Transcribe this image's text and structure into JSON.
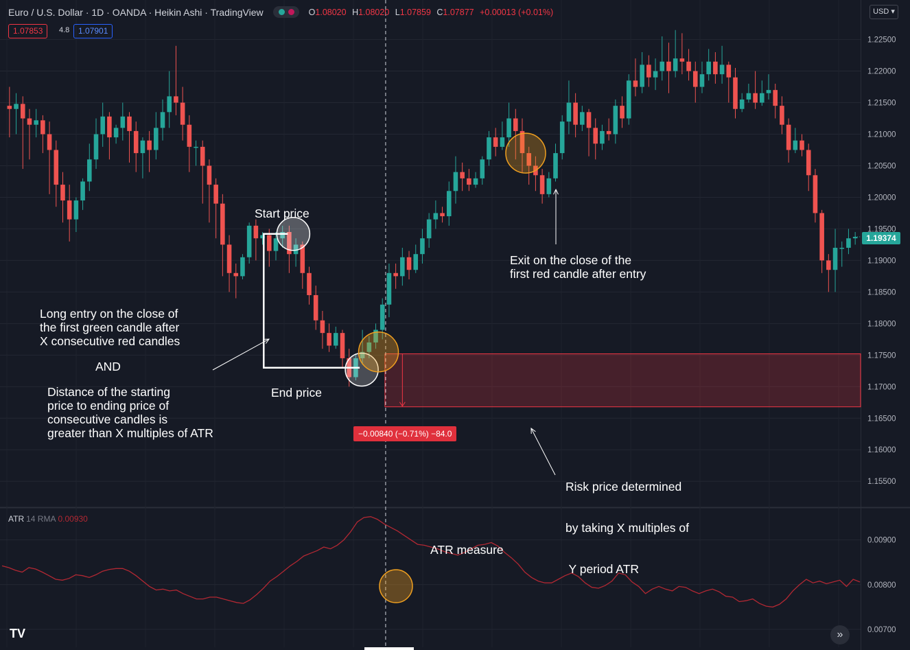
{
  "header": {
    "symbol_line": "Euro / U.S. Dollar · 1D · OANDA · Heikin Ashi · TradingView",
    "ohlc": [
      {
        "k": "O",
        "v": "1.08020"
      },
      {
        "k": "H",
        "v": "1.08020"
      },
      {
        "k": "L",
        "v": "1.07859"
      },
      {
        "k": "C",
        "v": "1.07877"
      },
      {
        "k": "",
        "v": "+0.00013 (+0.01%)"
      }
    ],
    "sell_price": "1.07853",
    "spread": "4.8",
    "buy_price": "1.07901",
    "currency_button": "USD"
  },
  "colors": {
    "up": "#26a69a",
    "down": "#ef5350",
    "background": "#161a25",
    "atr_line": "#b22833",
    "highlight_orange": "#f0a020",
    "highlight_white": "#ffffff"
  },
  "annotations": {
    "start_price": "Start price",
    "end_price": "End price",
    "entry_lines": [
      "Long entry on the close of",
      "the first green candle after",
      "X consecutive red candles"
    ],
    "and": "AND",
    "distance_lines": [
      "Distance of the starting",
      "price to ending price of",
      "consecutive candles is",
      "greater than X multiples of ATR"
    ],
    "exit_lines": [
      "Exit on the close of the",
      "first red candle after entry"
    ],
    "risk_lines": [
      "Risk price determined",
      "by taking X multiples of",
      " Y period ATR"
    ],
    "atr_measure": "ATR measure"
  },
  "measure_label": "−0.00840 (−0.71%) −84.0",
  "last_price": "1.19374",
  "atr_indicator": {
    "name": "ATR",
    "params": "14 RMA",
    "value": "0.00930"
  },
  "chart_data": [
    {
      "type": "candlestick",
      "title": "Euro / U.S. Dollar · 1D · OANDA · Heikin Ashi",
      "ylim": [
        1.151,
        1.228
      ],
      "y_ticks": [
        "1.22500",
        "1.22000",
        "1.21500",
        "1.21000",
        "1.20500",
        "1.20000",
        "1.19500",
        "1.19000",
        "1.18500",
        "1.18000",
        "1.17500",
        "1.17000",
        "1.16500",
        "1.16000",
        "1.15500"
      ],
      "candles": [
        {
          "o": 1.2145,
          "c": 1.214,
          "h": 1.2175,
          "l": 1.2095
        },
        {
          "o": 1.214,
          "c": 1.2148,
          "h": 1.2165,
          "l": 1.21
        },
        {
          "o": 1.2148,
          "c": 1.2125,
          "h": 1.216,
          "l": 1.2045
        },
        {
          "o": 1.2125,
          "c": 1.2115,
          "h": 1.214,
          "l": 1.206
        },
        {
          "o": 1.2115,
          "c": 1.2122,
          "h": 1.214,
          "l": 1.2095
        },
        {
          "o": 1.2122,
          "c": 1.21,
          "h": 1.213,
          "l": 1.207
        },
        {
          "o": 1.21,
          "c": 1.2075,
          "h": 1.212,
          "l": 1.2005
        },
        {
          "o": 1.2075,
          "c": 1.202,
          "h": 1.209,
          "l": 1.1985
        },
        {
          "o": 1.202,
          "c": 1.1995,
          "h": 1.204,
          "l": 1.196
        },
        {
          "o": 1.1995,
          "c": 1.1965,
          "h": 1.202,
          "l": 1.193
        },
        {
          "o": 1.1965,
          "c": 1.1995,
          "h": 1.2,
          "l": 1.1945
        },
        {
          "o": 1.1995,
          "c": 1.2025,
          "h": 1.203,
          "l": 1.198
        },
        {
          "o": 1.2025,
          "c": 1.206,
          "h": 1.2085,
          "l": 1.201
        },
        {
          "o": 1.206,
          "c": 1.21,
          "h": 1.2125,
          "l": 1.2045
        },
        {
          "o": 1.21,
          "c": 1.2128,
          "h": 1.215,
          "l": 1.208
        },
        {
          "o": 1.2128,
          "c": 1.2095,
          "h": 1.2135,
          "l": 1.206
        },
        {
          "o": 1.2095,
          "c": 1.211,
          "h": 1.2115,
          "l": 1.2085
        },
        {
          "o": 1.211,
          "c": 1.2128,
          "h": 1.215,
          "l": 1.209
        },
        {
          "o": 1.2128,
          "c": 1.2105,
          "h": 1.2135,
          "l": 1.2055
        },
        {
          "o": 1.2105,
          "c": 1.207,
          "h": 1.212,
          "l": 1.204
        },
        {
          "o": 1.207,
          "c": 1.209,
          "h": 1.2095,
          "l": 1.203
        },
        {
          "o": 1.209,
          "c": 1.2075,
          "h": 1.2105,
          "l": 1.204
        },
        {
          "o": 1.2075,
          "c": 1.211,
          "h": 1.2135,
          "l": 1.206
        },
        {
          "o": 1.211,
          "c": 1.2135,
          "h": 1.2155,
          "l": 1.209
        },
        {
          "o": 1.2135,
          "c": 1.216,
          "h": 1.22,
          "l": 1.211
        },
        {
          "o": 1.216,
          "c": 1.215,
          "h": 1.224,
          "l": 1.213
        },
        {
          "o": 1.215,
          "c": 1.2115,
          "h": 1.2175,
          "l": 1.209
        },
        {
          "o": 1.2115,
          "c": 1.208,
          "h": 1.213,
          "l": 1.204
        },
        {
          "o": 1.208,
          "c": 1.208,
          "h": 1.209,
          "l": 1.205
        },
        {
          "o": 1.208,
          "c": 1.205,
          "h": 1.209,
          "l": 1.199
        },
        {
          "o": 1.205,
          "c": 1.202,
          "h": 1.206,
          "l": 1.196
        },
        {
          "o": 1.202,
          "c": 1.199,
          "h": 1.203,
          "l": 1.1935
        },
        {
          "o": 1.199,
          "c": 1.1925,
          "h": 1.2005,
          "l": 1.1875
        },
        {
          "o": 1.1925,
          "c": 1.188,
          "h": 1.194,
          "l": 1.185
        },
        {
          "o": 1.188,
          "c": 1.1875,
          "h": 1.1895,
          "l": 1.184
        },
        {
          "o": 1.1875,
          "c": 1.1905,
          "h": 1.191,
          "l": 1.187
        },
        {
          "o": 1.1905,
          "c": 1.1955,
          "h": 1.196,
          "l": 1.1895
        },
        {
          "o": 1.1955,
          "c": 1.1935,
          "h": 1.1965,
          "l": 1.19
        },
        {
          "o": 1.1935,
          "c": 1.194,
          "h": 1.1945,
          "l": 1.1925
        },
        {
          "o": 1.194,
          "c": 1.1915,
          "h": 1.195,
          "l": 1.189
        },
        {
          "o": 1.1915,
          "c": 1.1935,
          "h": 1.1945,
          "l": 1.19
        },
        {
          "o": 1.1935,
          "c": 1.1945,
          "h": 1.1955,
          "l": 1.192
        },
        {
          "o": 1.1945,
          "c": 1.191,
          "h": 1.1955,
          "l": 1.188
        },
        {
          "o": 1.191,
          "c": 1.1925,
          "h": 1.1935,
          "l": 1.189
        },
        {
          "o": 1.1925,
          "c": 1.188,
          "h": 1.193,
          "l": 1.1855
        },
        {
          "o": 1.188,
          "c": 1.1845,
          "h": 1.189,
          "l": 1.183
        },
        {
          "o": 1.1845,
          "c": 1.1805,
          "h": 1.186,
          "l": 1.179
        },
        {
          "o": 1.1805,
          "c": 1.1785,
          "h": 1.182,
          "l": 1.176
        },
        {
          "o": 1.1785,
          "c": 1.1765,
          "h": 1.18,
          "l": 1.1755
        },
        {
          "o": 1.1765,
          "c": 1.1785,
          "h": 1.1795,
          "l": 1.176
        },
        {
          "o": 1.1785,
          "c": 1.1745,
          "h": 1.179,
          "l": 1.173
        },
        {
          "o": 1.1745,
          "c": 1.1715,
          "h": 1.176,
          "l": 1.17
        },
        {
          "o": 1.1715,
          "c": 1.1745,
          "h": 1.175,
          "l": 1.171
        },
        {
          "o": 1.1745,
          "c": 1.1755,
          "h": 1.179,
          "l": 1.1735
        },
        {
          "o": 1.1755,
          "c": 1.177,
          "h": 1.178,
          "l": 1.1745
        },
        {
          "o": 1.177,
          "c": 1.179,
          "h": 1.18,
          "l": 1.176
        },
        {
          "o": 1.179,
          "c": 1.183,
          "h": 1.184,
          "l": 1.1775
        },
        {
          "o": 1.183,
          "c": 1.188,
          "h": 1.1895,
          "l": 1.181
        },
        {
          "o": 1.188,
          "c": 1.1875,
          "h": 1.1895,
          "l": 1.1855
        },
        {
          "o": 1.1875,
          "c": 1.1905,
          "h": 1.192,
          "l": 1.186
        },
        {
          "o": 1.1905,
          "c": 1.1885,
          "h": 1.1915,
          "l": 1.187
        },
        {
          "o": 1.1885,
          "c": 1.191,
          "h": 1.1925,
          "l": 1.188
        },
        {
          "o": 1.191,
          "c": 1.1935,
          "h": 1.195,
          "l": 1.1895
        },
        {
          "o": 1.1935,
          "c": 1.1965,
          "h": 1.1975,
          "l": 1.192
        },
        {
          "o": 1.1965,
          "c": 1.1975,
          "h": 1.1995,
          "l": 1.195
        },
        {
          "o": 1.1975,
          "c": 1.197,
          "h": 1.1985,
          "l": 1.196
        },
        {
          "o": 1.197,
          "c": 1.201,
          "h": 1.2025,
          "l": 1.1955
        },
        {
          "o": 1.201,
          "c": 1.204,
          "h": 1.2065,
          "l": 1.199
        },
        {
          "o": 1.204,
          "c": 1.203,
          "h": 1.2055,
          "l": 1.201
        },
        {
          "o": 1.203,
          "c": 1.202,
          "h": 1.2045,
          "l": 1.201
        },
        {
          "o": 1.202,
          "c": 1.203,
          "h": 1.204,
          "l": 1.2015
        },
        {
          "o": 1.203,
          "c": 1.206,
          "h": 1.2065,
          "l": 1.202
        },
        {
          "o": 1.206,
          "c": 1.2095,
          "h": 1.2105,
          "l": 1.205
        },
        {
          "o": 1.2095,
          "c": 1.208,
          "h": 1.211,
          "l": 1.2065
        },
        {
          "o": 1.208,
          "c": 1.2095,
          "h": 1.212,
          "l": 1.2075
        },
        {
          "o": 1.2095,
          "c": 1.2125,
          "h": 1.215,
          "l": 1.208
        },
        {
          "o": 1.2125,
          "c": 1.2105,
          "h": 1.214,
          "l": 1.206
        },
        {
          "o": 1.2105,
          "c": 1.207,
          "h": 1.2125,
          "l": 1.204
        },
        {
          "o": 1.207,
          "c": 1.205,
          "h": 1.208,
          "l": 1.202
        },
        {
          "o": 1.205,
          "c": 1.2035,
          "h": 1.2065,
          "l": 1.201
        },
        {
          "o": 1.2035,
          "c": 1.2005,
          "h": 1.2045,
          "l": 1.199
        },
        {
          "o": 1.2005,
          "c": 1.203,
          "h": 1.204,
          "l": 1.2
        },
        {
          "o": 1.203,
          "c": 1.207,
          "h": 1.2085,
          "l": 1.2025
        },
        {
          "o": 1.207,
          "c": 1.212,
          "h": 1.213,
          "l": 1.206
        },
        {
          "o": 1.212,
          "c": 1.215,
          "h": 1.2185,
          "l": 1.21
        },
        {
          "o": 1.215,
          "c": 1.2115,
          "h": 1.2165,
          "l": 1.2095
        },
        {
          "o": 1.2115,
          "c": 1.2135,
          "h": 1.2145,
          "l": 1.2105
        },
        {
          "o": 1.2135,
          "c": 1.211,
          "h": 1.214,
          "l": 1.2065
        },
        {
          "o": 1.211,
          "c": 1.2085,
          "h": 1.2125,
          "l": 1.206
        },
        {
          "o": 1.2085,
          "c": 1.2105,
          "h": 1.2115,
          "l": 1.2075
        },
        {
          "o": 1.2105,
          "c": 1.21,
          "h": 1.2125,
          "l": 1.209
        },
        {
          "o": 1.21,
          "c": 1.2145,
          "h": 1.2155,
          "l": 1.2085
        },
        {
          "o": 1.2145,
          "c": 1.2125,
          "h": 1.216,
          "l": 1.211
        },
        {
          "o": 1.2125,
          "c": 1.2185,
          "h": 1.2195,
          "l": 1.2115
        },
        {
          "o": 1.2185,
          "c": 1.2175,
          "h": 1.222,
          "l": 1.216
        },
        {
          "o": 1.2175,
          "c": 1.221,
          "h": 1.223,
          "l": 1.2165
        },
        {
          "o": 1.221,
          "c": 1.219,
          "h": 1.2225,
          "l": 1.2175
        },
        {
          "o": 1.219,
          "c": 1.22,
          "h": 1.222,
          "l": 1.217
        },
        {
          "o": 1.22,
          "c": 1.2215,
          "h": 1.2255,
          "l": 1.2185
        },
        {
          "o": 1.2215,
          "c": 1.22,
          "h": 1.2245,
          "l": 1.2165
        },
        {
          "o": 1.22,
          "c": 1.222,
          "h": 1.2265,
          "l": 1.219
        },
        {
          "o": 1.222,
          "c": 1.2215,
          "h": 1.226,
          "l": 1.2195
        },
        {
          "o": 1.2215,
          "c": 1.22,
          "h": 1.2235,
          "l": 1.2185
        },
        {
          "o": 1.22,
          "c": 1.2175,
          "h": 1.2215,
          "l": 1.215
        },
        {
          "o": 1.2175,
          "c": 1.2195,
          "h": 1.2215,
          "l": 1.2165
        },
        {
          "o": 1.2195,
          "c": 1.2215,
          "h": 1.2235,
          "l": 1.2185
        },
        {
          "o": 1.2215,
          "c": 1.2195,
          "h": 1.223,
          "l": 1.218
        },
        {
          "o": 1.2195,
          "c": 1.221,
          "h": 1.224,
          "l": 1.218
        },
        {
          "o": 1.221,
          "c": 1.219,
          "h": 1.2215,
          "l": 1.215
        },
        {
          "o": 1.219,
          "c": 1.214,
          "h": 1.2205,
          "l": 1.2125
        },
        {
          "o": 1.214,
          "c": 1.2155,
          "h": 1.2165,
          "l": 1.2135
        },
        {
          "o": 1.2155,
          "c": 1.2165,
          "h": 1.218,
          "l": 1.215
        },
        {
          "o": 1.2165,
          "c": 1.215,
          "h": 1.22,
          "l": 1.214
        },
        {
          "o": 1.215,
          "c": 1.2165,
          "h": 1.2185,
          "l": 1.2145
        },
        {
          "o": 1.2165,
          "c": 1.217,
          "h": 1.2195,
          "l": 1.2155
        },
        {
          "o": 1.217,
          "c": 1.2145,
          "h": 1.218,
          "l": 1.2125
        },
        {
          "o": 1.2145,
          "c": 1.2115,
          "h": 1.216,
          "l": 1.21
        },
        {
          "o": 1.2115,
          "c": 1.2075,
          "h": 1.2125,
          "l": 1.2055
        },
        {
          "o": 1.2075,
          "c": 1.209,
          "h": 1.211,
          "l": 1.207
        },
        {
          "o": 1.209,
          "c": 1.2075,
          "h": 1.21,
          "l": 1.2065
        },
        {
          "o": 1.2075,
          "c": 1.2035,
          "h": 1.2085,
          "l": 1.201
        },
        {
          "o": 1.2035,
          "c": 1.1975,
          "h": 1.2045,
          "l": 1.196
        },
        {
          "o": 1.1975,
          "c": 1.19,
          "h": 1.198,
          "l": 1.188
        },
        {
          "o": 1.19,
          "c": 1.1885,
          "h": 1.191,
          "l": 1.185
        },
        {
          "o": 1.1885,
          "c": 1.192,
          "h": 1.195,
          "l": 1.185
        },
        {
          "o": 1.192,
          "c": 1.192,
          "h": 1.193,
          "l": 1.189
        },
        {
          "o": 1.192,
          "c": 1.1935,
          "h": 1.195,
          "l": 1.191
        },
        {
          "o": 1.1935,
          "c": 1.19374,
          "h": 1.1945,
          "l": 1.1925
        }
      ]
    },
    {
      "type": "line",
      "title": "ATR 14 RMA",
      "ylim": [
        0.0066,
        0.0097
      ],
      "y_ticks": [
        "0.00900",
        "0.00800",
        "0.00700"
      ],
      "series": [
        {
          "name": "ATR",
          "color": "#b22833",
          "values": [
            0.00842,
            0.00838,
            0.00832,
            0.00828,
            0.00838,
            0.00835,
            0.00828,
            0.0082,
            0.00812,
            0.0081,
            0.00814,
            0.00822,
            0.0082,
            0.00816,
            0.00822,
            0.0083,
            0.00834,
            0.00836,
            0.00836,
            0.0083,
            0.0082,
            0.00808,
            0.00796,
            0.00788,
            0.0079,
            0.00786,
            0.00788,
            0.0078,
            0.00774,
            0.00768,
            0.00768,
            0.00772,
            0.00772,
            0.00768,
            0.00764,
            0.0076,
            0.00758,
            0.00766,
            0.00778,
            0.00792,
            0.00808,
            0.00818,
            0.0083,
            0.00842,
            0.00852,
            0.00864,
            0.0087,
            0.00876,
            0.00884,
            0.0088,
            0.00888,
            0.009,
            0.00918,
            0.0094,
            0.0095,
            0.00952,
            0.00946,
            0.00936,
            0.00928,
            0.0092,
            0.0091,
            0.009,
            0.0089,
            0.00888,
            0.00884,
            0.0088,
            0.00874,
            0.0087,
            0.00866,
            0.00872,
            0.0088,
            0.00888,
            0.0089,
            0.00894,
            0.00886,
            0.00872,
            0.0086,
            0.00846,
            0.00828,
            0.00816,
            0.00808,
            0.00804,
            0.00804,
            0.00812,
            0.0082,
            0.00826,
            0.00818,
            0.00804,
            0.00794,
            0.00792,
            0.00798,
            0.00808,
            0.00826,
            0.00822,
            0.00806,
            0.00796,
            0.0078,
            0.0079,
            0.00796,
            0.0079,
            0.00786,
            0.00796,
            0.00794,
            0.00786,
            0.0078,
            0.00786,
            0.0079,
            0.00784,
            0.00774,
            0.00772,
            0.00762,
            0.00764,
            0.00768,
            0.00758,
            0.00752,
            0.0075,
            0.00756,
            0.00768,
            0.00786,
            0.008,
            0.00812,
            0.00804,
            0.00808,
            0.00802,
            0.00806,
            0.0081,
            0.00796,
            0.00812,
            0.00806
          ]
        }
      ]
    }
  ]
}
